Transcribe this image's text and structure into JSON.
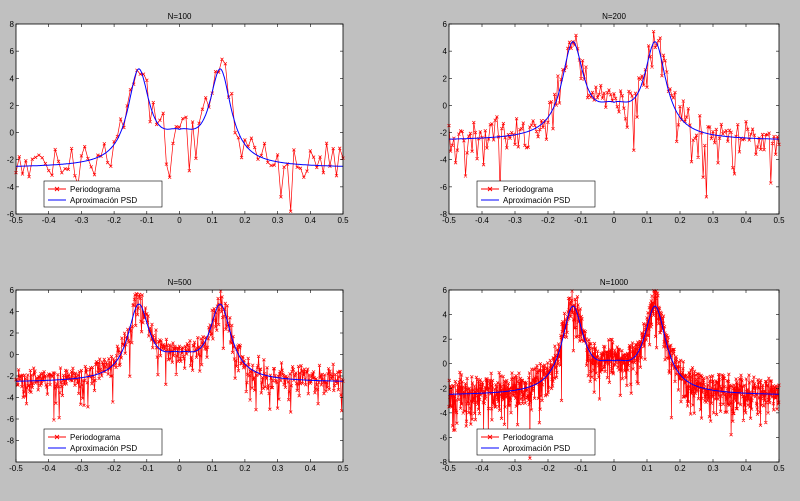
{
  "chart_data": [
    {
      "type": "line",
      "title": "N=100",
      "n": 100,
      "xlim": [
        -0.5,
        0.5
      ],
      "ylim": [
        -6,
        8
      ],
      "xticks": [
        "-0.5",
        "-0.4",
        "-0.3",
        "-0.2",
        "-0.1",
        "0",
        "0.1",
        "0.2",
        "0.3",
        "0.4",
        "0.5"
      ],
      "yticks": [
        "-6",
        "-4",
        "-2",
        "0",
        "2",
        "4",
        "6",
        "8"
      ],
      "series": [
        {
          "name": "Periodograma",
          "color": "#ff0000",
          "marker": "x"
        },
        {
          "name": "Aproximación PSD",
          "color": "#0000ff",
          "marker": "none"
        }
      ],
      "psd_key_points": {
        "x": [
          -0.5,
          -0.3,
          -0.2,
          -0.125,
          -0.05,
          0,
          0.05,
          0.125,
          0.2,
          0.3,
          0.5
        ],
        "y": [
          -2.4,
          -1.8,
          -0.3,
          5.0,
          1.8,
          1.2,
          1.8,
          5.0,
          -0.3,
          -1.8,
          -2.4
        ]
      },
      "legend": "bottom-left"
    },
    {
      "type": "line",
      "title": "N=200",
      "n": 200,
      "xlim": [
        -0.5,
        0.5
      ],
      "ylim": [
        -8,
        6
      ],
      "xticks": [
        "-0.5",
        "-0.4",
        "-0.3",
        "-0.2",
        "-0.1",
        "0",
        "0.1",
        "0.2",
        "0.3",
        "0.4",
        "0.5"
      ],
      "yticks": [
        "-8",
        "-6",
        "-4",
        "-2",
        "0",
        "2",
        "4",
        "6"
      ],
      "series": [
        {
          "name": "Periodograma",
          "color": "#ff0000",
          "marker": "x"
        },
        {
          "name": "Aproximación PSD",
          "color": "#0000ff",
          "marker": "none"
        }
      ],
      "psd_key_points": {
        "x": [
          -0.5,
          -0.3,
          -0.2,
          -0.125,
          -0.05,
          0,
          0.05,
          0.125,
          0.2,
          0.3,
          0.5
        ],
        "y": [
          -2.4,
          -1.8,
          -0.3,
          5.0,
          1.8,
          1.2,
          1.8,
          5.0,
          -0.3,
          -1.8,
          -2.4
        ]
      },
      "legend": "bottom-left"
    },
    {
      "type": "line",
      "title": "N=500",
      "n": 500,
      "xlim": [
        -0.5,
        0.5
      ],
      "ylim": [
        -10,
        6
      ],
      "xticks": [
        "-0.5",
        "-0.4",
        "-0.3",
        "-0.2",
        "-0.1",
        "0",
        "0.1",
        "0.2",
        "0.3",
        "0.4",
        "0.5"
      ],
      "yticks": [
        "-8",
        "-6",
        "-4",
        "-2",
        "0",
        "2",
        "4",
        "6"
      ],
      "series": [
        {
          "name": "Periodograma",
          "color": "#ff0000",
          "marker": "x"
        },
        {
          "name": "Aproximación PSD",
          "color": "#0000ff",
          "marker": "none"
        }
      ],
      "psd_key_points": {
        "x": [
          -0.5,
          -0.3,
          -0.2,
          -0.125,
          -0.05,
          0,
          0.05,
          0.125,
          0.2,
          0.3,
          0.5
        ],
        "y": [
          -2.4,
          -1.8,
          -0.3,
          5.0,
          1.8,
          1.2,
          1.8,
          5.0,
          -0.3,
          -1.8,
          -2.4
        ]
      },
      "legend": "bottom-left"
    },
    {
      "type": "line",
      "title": "N=1000",
      "n": 1000,
      "xlim": [
        -0.5,
        0.5
      ],
      "ylim": [
        -8,
        6
      ],
      "xticks": [
        "-0.5",
        "-0.4",
        "-0.3",
        "-0.2",
        "-0.1",
        "0",
        "0.1",
        "0.2",
        "0.3",
        "0.4",
        "0.5"
      ],
      "yticks": [
        "-8",
        "-6",
        "-4",
        "-2",
        "0",
        "2",
        "4",
        "6"
      ],
      "series": [
        {
          "name": "Periodograma",
          "color": "#ff0000",
          "marker": "x"
        },
        {
          "name": "Aproximación PSD",
          "color": "#0000ff",
          "marker": "none"
        }
      ],
      "psd_key_points": {
        "x": [
          -0.5,
          -0.3,
          -0.2,
          -0.125,
          -0.05,
          0,
          0.05,
          0.125,
          0.2,
          0.3,
          0.5
        ],
        "y": [
          -2.4,
          -1.8,
          -0.3,
          5.0,
          1.8,
          1.2,
          1.8,
          5.0,
          -0.3,
          -1.8,
          -2.4
        ]
      },
      "legend": "bottom-left"
    }
  ]
}
